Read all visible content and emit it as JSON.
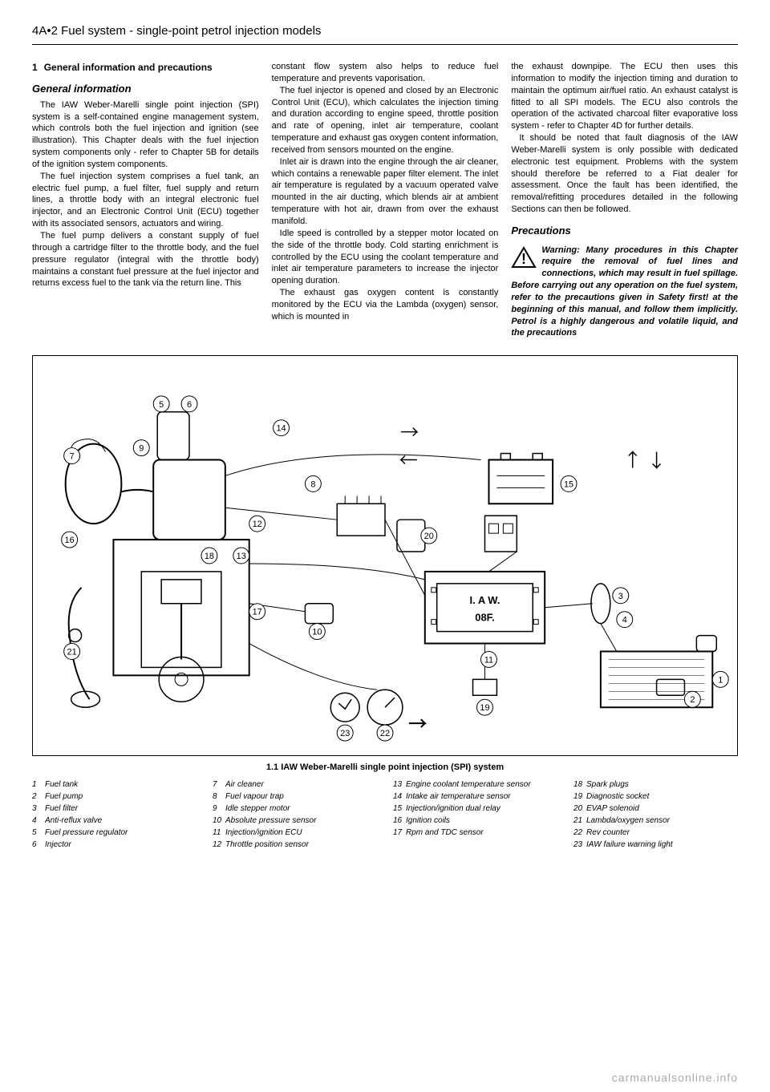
{
  "header": "4A•2  Fuel system - single-point petrol injection models",
  "section1": {
    "number": "1",
    "title": "General information and precautions"
  },
  "general_info_title": "General information",
  "para1": "The IAW Weber-Marelli single point injection (SPI) system is a self-contained engine management system, which controls both the fuel injection and ignition (see illustration). This Chapter deals with the fuel injection system components only - refer to Chapter 5B for details of the ignition system components.",
  "para2": "The fuel injection system comprises a fuel tank, an electric fuel pump, a fuel filter, fuel supply and return lines, a throttle body with an integral electronic fuel injector, and an Electronic Control Unit (ECU) together with its associated sensors, actuators and wiring.",
  "para3": "The fuel pump delivers a constant supply of fuel through a cartridge filter to the throttle body, and the fuel pressure regulator (integral with the throttle body) maintains a constant fuel pressure at the fuel injector and returns excess fuel to the tank via the return line. This",
  "para4": "constant flow system also helps to reduce fuel temperature and prevents vaporisation.",
  "para5": "The fuel injector is opened and closed by an Electronic Control Unit (ECU), which calculates the injection timing and duration according to engine speed, throttle position and rate of opening, inlet air temperature, coolant temperature and exhaust gas oxygen content information, received from sensors mounted on the engine.",
  "para6": "Inlet air is drawn into the engine through the air cleaner, which contains a renewable paper filter element. The inlet air temperature is regulated by a vacuum operated valve mounted in the air ducting, which blends air at ambient temperature with hot air, drawn from over the exhaust manifold.",
  "para7": "Idle speed is controlled by a stepper motor located on the side of the throttle body. Cold starting enrichment is controlled by the ECU using the coolant temperature and inlet air temperature parameters to increase the injector opening duration.",
  "para8": "The exhaust gas oxygen content is constantly monitored by the ECU via the Lambda (oxygen) sensor, which is mounted in",
  "para9": "the exhaust downpipe. The ECU then uses this information to modify the injection timing and duration to maintain the optimum air/fuel ratio. An exhaust catalyst is fitted to all SPI models. The ECU also controls the operation of the activated charcoal filter evaporative loss system - refer to Chapter 4D for further details.",
  "para10": "It should be noted that fault diagnosis of the IAW Weber-Marelli system is only possible with dedicated electronic test equipment. Problems with the system should therefore be referred to a Fiat dealer for assessment. Once the fault has been identified, the removal/refitting procedures detailed in the following Sections can then be followed.",
  "precautions_title": "Precautions",
  "warning_text": "Warning: Many procedures in this Chapter require the removal of fuel lines and connections, which may result in fuel spillage. Before carrying out any operation on the fuel system, refer to the precautions given in Safety first! at the beginning of this manual, and follow them implicitly. Petrol is a highly dangerous and volatile liquid, and the precautions",
  "diagram_caption": "1.1  IAW Weber-Marelli single point injection (SPI) system",
  "legend": {
    "col1": [
      {
        "n": "1",
        "t": "Fuel tank"
      },
      {
        "n": "2",
        "t": "Fuel pump"
      },
      {
        "n": "3",
        "t": "Fuel filter"
      },
      {
        "n": "4",
        "t": "Anti-reflux valve"
      },
      {
        "n": "5",
        "t": "Fuel pressure regulator"
      },
      {
        "n": "6",
        "t": "Injector"
      }
    ],
    "col2": [
      {
        "n": "7",
        "t": "Air cleaner"
      },
      {
        "n": "8",
        "t": "Fuel vapour trap"
      },
      {
        "n": "9",
        "t": "Idle stepper motor"
      },
      {
        "n": "10",
        "t": "Absolute pressure sensor"
      },
      {
        "n": "11",
        "t": "Injection/ignition ECU"
      },
      {
        "n": "12",
        "t": "Throttle position sensor"
      }
    ],
    "col3": [
      {
        "n": "13",
        "t": "Engine coolant temperature sensor"
      },
      {
        "n": "14",
        "t": "Intake air temperature sensor"
      },
      {
        "n": "15",
        "t": "Injection/ignition dual relay"
      },
      {
        "n": "16",
        "t": "Ignition coils"
      },
      {
        "n": "17",
        "t": "Rpm and TDC sensor"
      }
    ],
    "col4": [
      {
        "n": "18",
        "t": "Spark plugs"
      },
      {
        "n": "19",
        "t": "Diagnostic socket"
      },
      {
        "n": "20",
        "t": "EVAP solenoid"
      },
      {
        "n": "21",
        "t": "Lambda/oxygen sensor"
      },
      {
        "n": "22",
        "t": "Rev counter"
      },
      {
        "n": "23",
        "t": "IAW failure warning light"
      }
    ]
  },
  "ecu_label1": "I. A  W.",
  "ecu_label2": "08F.",
  "watermark": "carmanualsonline.info"
}
